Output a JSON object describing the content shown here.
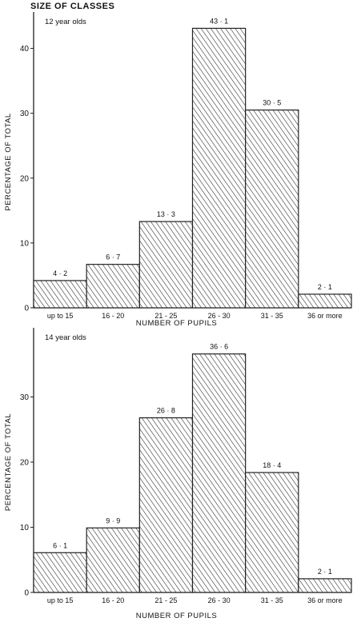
{
  "title": "SIZE OF CLASSES",
  "chart_data": [
    {
      "type": "bar",
      "panel_label": "12 year olds",
      "categories": [
        "up to 15",
        "16 - 20",
        "21 - 25",
        "26 - 30",
        "31 - 35",
        "36 or more"
      ],
      "values": [
        4.2,
        6.7,
        13.3,
        43.1,
        30.5,
        2.1
      ],
      "value_labels": [
        "4 · 2",
        "6 · 7",
        "13 · 3",
        "43 · 1",
        "30 · 5",
        "2 · 1"
      ],
      "xlabel": "NUMBER OF PUPILS",
      "ylabel": "PERCENTAGE OF TOTAL",
      "ylim": [
        0,
        45
      ],
      "yticks": [
        0,
        10,
        20,
        30,
        40
      ],
      "fill": "hatched"
    },
    {
      "type": "bar",
      "panel_label": "14 year olds",
      "categories": [
        "up to 15",
        "16 - 20",
        "21 - 25",
        "26 - 30",
        "31 - 35",
        "36 or more"
      ],
      "values": [
        6.1,
        9.9,
        26.8,
        36.6,
        18.4,
        2.1
      ],
      "value_labels": [
        "6 · 1",
        "9 · 9",
        "26 · 8",
        "36 · 6",
        "18 · 4",
        "2 · 1"
      ],
      "xlabel": "NUMBER OF PUPILS",
      "ylabel": "PERCENTAGE OF TOTAL",
      "ylim": [
        0,
        40
      ],
      "yticks": [
        0,
        10,
        20,
        30
      ],
      "fill": "hatched"
    }
  ]
}
